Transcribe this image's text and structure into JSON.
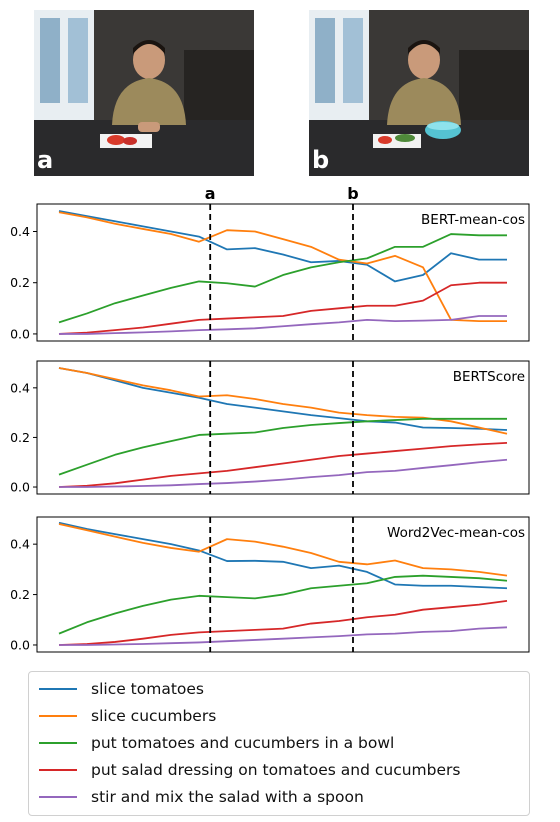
{
  "photos": [
    {
      "label": "a"
    },
    {
      "label": "b"
    }
  ],
  "markers": [
    "a",
    "b"
  ],
  "colors": {
    "slice tomatoes": "#1f77b4",
    "slice cucumbers": "#ff7f0e",
    "put tomatoes and cucumbers in a bowl": "#2ca02c",
    "put salad dressing on tomatoes and cucumbers": "#d62728",
    "stir and mix the salad with a spoon": "#9467bd"
  },
  "legend": [
    "slice tomatoes",
    "slice cucumbers",
    "put tomatoes and cucumbers in a bowl",
    "put salad dressing on tomatoes and cucumbers",
    "stir and mix the salad with a spoon"
  ],
  "chart_data": [
    {
      "type": "line",
      "title": "BERT-mean-cos",
      "ylim": [
        0,
        0.5
      ],
      "yticks": [
        "0.0",
        "0.2",
        "0.4"
      ],
      "x": [
        0,
        1,
        2,
        3,
        4,
        5,
        6,
        7,
        8,
        9,
        10,
        11,
        12,
        13,
        14,
        15,
        16
      ],
      "markers_at": {
        "a": 5.4,
        "b": 10.5
      },
      "series": [
        {
          "name": "slice tomatoes",
          "values": [
            0.48,
            0.46,
            0.44,
            0.42,
            0.4,
            0.38,
            0.33,
            0.335,
            0.31,
            0.28,
            0.285,
            0.27,
            0.205,
            0.23,
            0.315,
            0.29,
            0.29
          ]
        },
        {
          "name": "slice cucumbers",
          "values": [
            0.475,
            0.455,
            0.43,
            0.41,
            0.39,
            0.36,
            0.405,
            0.4,
            0.37,
            0.34,
            0.29,
            0.275,
            0.305,
            0.26,
            0.055,
            0.05,
            0.05
          ]
        },
        {
          "name": "put tomatoes and cucumbers in a bowl",
          "values": [
            0.045,
            0.08,
            0.12,
            0.15,
            0.18,
            0.205,
            0.198,
            0.185,
            0.23,
            0.26,
            0.28,
            0.295,
            0.34,
            0.34,
            0.39,
            0.385,
            0.385
          ]
        },
        {
          "name": "put salad dressing on tomatoes and cucumbers",
          "values": [
            0.0,
            0.005,
            0.015,
            0.025,
            0.04,
            0.055,
            0.06,
            0.065,
            0.07,
            0.09,
            0.1,
            0.11,
            0.11,
            0.13,
            0.19,
            0.2,
            0.2
          ]
        },
        {
          "name": "stir and mix the salad with a spoon",
          "values": [
            0.0,
            0.0,
            0.003,
            0.006,
            0.01,
            0.015,
            0.018,
            0.022,
            0.03,
            0.038,
            0.045,
            0.055,
            0.05,
            0.052,
            0.055,
            0.07,
            0.07
          ]
        }
      ]
    },
    {
      "type": "line",
      "title": "BERTScore",
      "ylim": [
        0,
        0.5
      ],
      "yticks": [
        "0.0",
        "0.2",
        "0.4"
      ],
      "x": [
        0,
        1,
        2,
        3,
        4,
        5,
        6,
        7,
        8,
        9,
        10,
        11,
        12,
        13,
        14,
        15,
        16
      ],
      "markers_at": {
        "a": 5.4,
        "b": 10.5
      },
      "series": [
        {
          "name": "slice tomatoes",
          "values": [
            0.48,
            0.46,
            0.43,
            0.4,
            0.38,
            0.36,
            0.335,
            0.32,
            0.305,
            0.29,
            0.278,
            0.265,
            0.26,
            0.24,
            0.238,
            0.235,
            0.23
          ]
        },
        {
          "name": "slice cucumbers",
          "values": [
            0.48,
            0.46,
            0.435,
            0.41,
            0.39,
            0.365,
            0.37,
            0.355,
            0.335,
            0.32,
            0.3,
            0.29,
            0.283,
            0.28,
            0.265,
            0.24,
            0.215
          ]
        },
        {
          "name": "put tomatoes and cucumbers in a bowl",
          "values": [
            0.05,
            0.09,
            0.13,
            0.16,
            0.185,
            0.21,
            0.215,
            0.22,
            0.238,
            0.25,
            0.258,
            0.265,
            0.27,
            0.275,
            0.275,
            0.275,
            0.275
          ]
        },
        {
          "name": "put salad dressing on tomatoes and cucumbers",
          "values": [
            0.0,
            0.005,
            0.015,
            0.03,
            0.045,
            0.055,
            0.065,
            0.08,
            0.095,
            0.11,
            0.125,
            0.135,
            0.145,
            0.155,
            0.165,
            0.172,
            0.178
          ]
        },
        {
          "name": "stir and mix the salad with a spoon",
          "values": [
            0.0,
            0.0,
            0.002,
            0.004,
            0.007,
            0.012,
            0.016,
            0.022,
            0.03,
            0.04,
            0.048,
            0.06,
            0.065,
            0.077,
            0.088,
            0.1,
            0.11
          ]
        }
      ]
    },
    {
      "type": "line",
      "title": "Word2Vec-mean-cos",
      "ylim": [
        0,
        0.5
      ],
      "yticks": [
        "0.0",
        "0.2",
        "0.4"
      ],
      "x": [
        0,
        1,
        2,
        3,
        4,
        5,
        6,
        7,
        8,
        9,
        10,
        11,
        12,
        13,
        14,
        15,
        16
      ],
      "markers_at": {
        "a": 5.4,
        "b": 10.5
      },
      "series": [
        {
          "name": "slice tomatoes",
          "values": [
            0.485,
            0.46,
            0.44,
            0.42,
            0.4,
            0.375,
            0.333,
            0.334,
            0.33,
            0.305,
            0.315,
            0.29,
            0.24,
            0.235,
            0.235,
            0.23,
            0.225
          ]
        },
        {
          "name": "slice cucumbers",
          "values": [
            0.48,
            0.455,
            0.43,
            0.405,
            0.385,
            0.37,
            0.42,
            0.41,
            0.39,
            0.365,
            0.33,
            0.32,
            0.335,
            0.305,
            0.3,
            0.29,
            0.275
          ]
        },
        {
          "name": "put tomatoes and cucumbers in a bowl",
          "values": [
            0.045,
            0.09,
            0.125,
            0.155,
            0.18,
            0.195,
            0.19,
            0.185,
            0.2,
            0.225,
            0.235,
            0.245,
            0.27,
            0.275,
            0.27,
            0.265,
            0.255
          ]
        },
        {
          "name": "put salad dressing on tomatoes and cucumbers",
          "values": [
            0.0,
            0.004,
            0.012,
            0.025,
            0.04,
            0.05,
            0.055,
            0.06,
            0.065,
            0.085,
            0.095,
            0.11,
            0.12,
            0.14,
            0.15,
            0.16,
            0.175
          ]
        },
        {
          "name": "stir and mix the salad with a spoon",
          "values": [
            0.0,
            0.0,
            0.002,
            0.004,
            0.007,
            0.01,
            0.015,
            0.02,
            0.025,
            0.03,
            0.035,
            0.042,
            0.045,
            0.052,
            0.055,
            0.065,
            0.07
          ]
        }
      ]
    }
  ]
}
